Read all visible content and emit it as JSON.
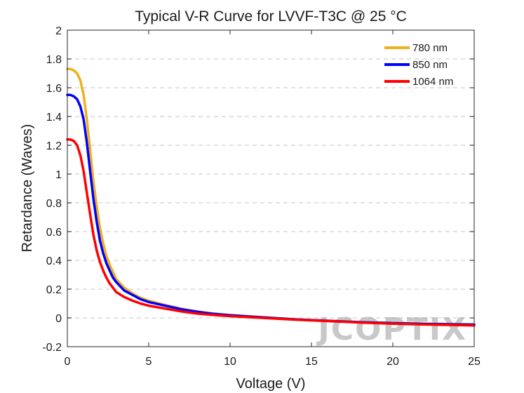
{
  "chart_data": {
    "type": "line",
    "title": "Typical V-R Curve for LVVF-T3C @ 25 °C",
    "xlabel": "Voltage (V)",
    "ylabel": "Retardance (Waves)",
    "xlim": [
      0,
      25
    ],
    "ylim": [
      -0.2,
      2
    ],
    "xticks": [
      0,
      5,
      10,
      15,
      20,
      25
    ],
    "xtick_labels": [
      "0",
      "5",
      "10",
      "15",
      "20",
      "25"
    ],
    "yticks": [
      -0.2,
      0,
      0.2,
      0.4,
      0.6,
      0.8,
      1,
      1.2,
      1.4,
      1.6,
      1.8,
      2
    ],
    "ytick_labels": [
      "-0.2",
      "0",
      "0.2",
      "0.4",
      "0.6",
      "0.8",
      "1",
      "1.2",
      "1.4",
      "1.6",
      "1.8",
      "2"
    ],
    "grid": "horizontal dashed",
    "legend_position": "top-right",
    "watermark": "JCOPTIX",
    "series": [
      {
        "name": "780 nm",
        "color": "#EDB120",
        "x": [
          0,
          0.2,
          0.4,
          0.6,
          0.8,
          1.0,
          1.2,
          1.4,
          1.6,
          1.8,
          2.0,
          2.2,
          2.4,
          2.6,
          2.8,
          3.0,
          3.5,
          4.0,
          4.5,
          5,
          6,
          7,
          8,
          9,
          10,
          12,
          14,
          16,
          18,
          20,
          22,
          25
        ],
        "y": [
          1.73,
          1.73,
          1.72,
          1.7,
          1.65,
          1.55,
          1.38,
          1.17,
          0.95,
          0.78,
          0.63,
          0.52,
          0.43,
          0.37,
          0.32,
          0.27,
          0.21,
          0.17,
          0.14,
          0.12,
          0.09,
          0.065,
          0.045,
          0.03,
          0.02,
          0.005,
          -0.01,
          -0.02,
          -0.03,
          -0.035,
          -0.04,
          -0.045
        ]
      },
      {
        "name": "850 nm",
        "color": "#0000FF",
        "x": [
          0,
          0.2,
          0.4,
          0.6,
          0.8,
          1.0,
          1.2,
          1.4,
          1.6,
          1.8,
          2.0,
          2.2,
          2.4,
          2.6,
          2.8,
          3.0,
          3.5,
          4.0,
          4.5,
          5,
          6,
          7,
          8,
          9,
          10,
          12,
          14,
          16,
          18,
          20,
          22,
          25
        ],
        "y": [
          1.55,
          1.55,
          1.54,
          1.52,
          1.47,
          1.38,
          1.22,
          1.02,
          0.83,
          0.67,
          0.54,
          0.45,
          0.38,
          0.33,
          0.28,
          0.25,
          0.19,
          0.16,
          0.13,
          0.11,
          0.085,
          0.06,
          0.042,
          0.028,
          0.018,
          0.004,
          -0.01,
          -0.02,
          -0.03,
          -0.036,
          -0.042,
          -0.047
        ]
      },
      {
        "name": "1064 nm",
        "color": "#FF0000",
        "x": [
          0,
          0.2,
          0.4,
          0.6,
          0.8,
          1.0,
          1.2,
          1.4,
          1.6,
          1.8,
          2.0,
          2.2,
          2.4,
          2.6,
          2.8,
          3.0,
          3.5,
          4.0,
          4.5,
          5,
          6,
          7,
          8,
          9,
          10,
          12,
          14,
          16,
          18,
          20,
          22,
          25
        ],
        "y": [
          1.24,
          1.24,
          1.23,
          1.2,
          1.13,
          1.02,
          0.87,
          0.72,
          0.58,
          0.47,
          0.39,
          0.33,
          0.28,
          0.24,
          0.21,
          0.18,
          0.145,
          0.12,
          0.1,
          0.085,
          0.065,
          0.045,
          0.03,
          0.02,
          0.012,
          0.0,
          -0.012,
          -0.022,
          -0.032,
          -0.04,
          -0.046,
          -0.052
        ]
      }
    ]
  }
}
